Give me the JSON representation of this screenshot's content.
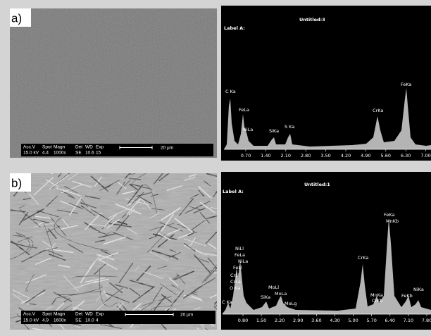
{
  "panels": [
    {
      "label": "a)",
      "sem": {
        "info_header": [
          "Acc.V",
          "Spot",
          "Magn",
          "Det",
          "WD",
          "Exp"
        ],
        "info_values": [
          "15.0 kV",
          "4.4",
          "1000x",
          "SE",
          "10.6",
          "15"
        ],
        "scale_bar": "20 µm"
      },
      "spectrum": {
        "title": "Untitled:3",
        "label": "Label A:",
        "peaks": [
          "C Ka",
          "FeLa",
          "NiLa",
          "SiKa",
          "S Ka",
          "CrKa",
          "FeKa"
        ],
        "xticks": [
          "0.70",
          "1.40",
          "2.10",
          "2.80",
          "3.50",
          "4.20",
          "4.90",
          "5.60",
          "6.30",
          "7.00"
        ]
      }
    },
    {
      "label": "b)",
      "sem": {
        "info_header": [
          "Acc.V",
          "Spot",
          "Magn",
          "Det",
          "WD",
          "Exp"
        ],
        "info_values": [
          "15.0 kV",
          "4.9",
          "1600x",
          "SE",
          "10.0",
          "4"
        ],
        "scale_bar": "20 µm"
      },
      "spectrum": {
        "title": "Untitled:1",
        "label": "Label A:",
        "peaks": [
          "C Ka",
          "NiLl",
          "FeLa",
          "NiLa",
          "FeLl",
          "CrLl",
          "CrLa",
          "O Ka",
          "SiKa",
          "MoLl",
          "MoLa",
          "MoLg",
          "CrKa",
          "MnKa",
          "CrKb",
          "FeKa",
          "MnKb",
          "FeKb",
          "NiKa"
        ],
        "xticks": [
          "0.80",
          "1.50",
          "2.20",
          "2.90",
          "3.60",
          "4.30",
          "5.00",
          "5.70",
          "6.40",
          "7.10",
          "7.80"
        ]
      }
    }
  ]
}
